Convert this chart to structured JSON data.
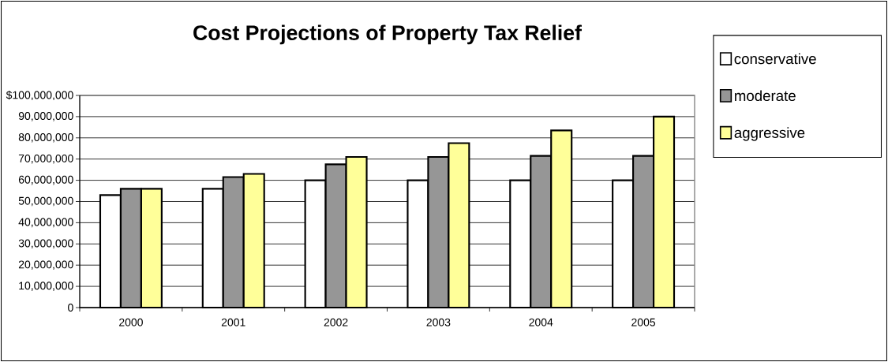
{
  "chart_data": {
    "type": "bar",
    "title": "Cost Projections of Property Tax Relief",
    "categories": [
      "2000",
      "2001",
      "2002",
      "2003",
      "2004",
      "2005"
    ],
    "series": [
      {
        "name": "conservative",
        "color": "#ffffff",
        "values": [
          53000000,
          56000000,
          60000000,
          60000000,
          60000000,
          60000000
        ]
      },
      {
        "name": "moderate",
        "color": "#969696",
        "values": [
          56000000,
          61500000,
          67500000,
          71000000,
          71500000,
          71500000
        ]
      },
      {
        "name": "aggressive",
        "color": "#ffff99",
        "values": [
          56000000,
          63000000,
          71000000,
          77500000,
          83500000,
          90000000
        ]
      }
    ],
    "ylim": [
      0,
      100000000
    ],
    "yticks": [
      0,
      {
        "value": 10000000,
        "label": "10,000,000"
      },
      {
        "value": 20000000,
        "label": "20,000,000"
      },
      {
        "value": 30000000,
        "label": "30,000,000"
      },
      {
        "value": 40000000,
        "label": "40,000,000"
      },
      {
        "value": 50000000,
        "label": "50,000,000"
      },
      {
        "value": 60000000,
        "label": "60,000,000"
      },
      {
        "value": 70000000,
        "label": "70,000,000"
      },
      {
        "value": 80000000,
        "label": "80,000,000"
      },
      {
        "value": 90000000,
        "label": "90,000,000"
      },
      {
        "value": 100000000,
        "label": "$100,000,000"
      }
    ],
    "grid": "y",
    "legend": "right"
  }
}
